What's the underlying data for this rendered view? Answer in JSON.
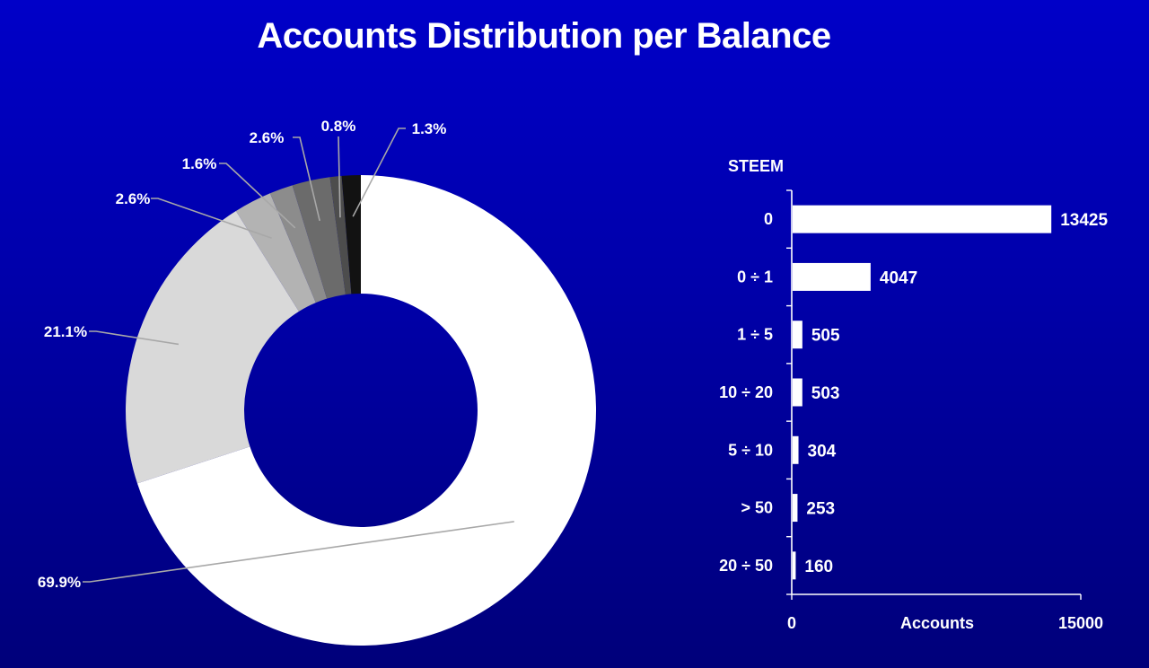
{
  "title": "Accounts Distribution per Balance",
  "colors": {
    "background_top": "#0000c8",
    "background_bottom": "#00007a",
    "text": "#ffffff",
    "leader_line": "#a8a8a8"
  },
  "chart_data": [
    {
      "type": "pie",
      "variant": "donut",
      "start_angle_deg": 0,
      "direction": "clockwise",
      "slices": [
        {
          "label": "69.9%",
          "value": 69.9,
          "color": "#ffffff"
        },
        {
          "label": "21.1%",
          "value": 21.1,
          "color": "#d9d9d9"
        },
        {
          "label": "2.6%",
          "value": 2.6,
          "color": "#b3b3b3"
        },
        {
          "label": "1.6%",
          "value": 1.6,
          "color": "#8c8c8c"
        },
        {
          "label": "2.6%",
          "value": 2.6,
          "color": "#6b6b6b"
        },
        {
          "label": "0.8%",
          "value": 0.8,
          "color": "#4d4d4d"
        },
        {
          "label": "1.3%",
          "value": 1.3,
          "color": "#121212"
        }
      ]
    },
    {
      "type": "bar",
      "orientation": "horizontal",
      "y_axis_title": "STEEM",
      "x_axis_title": "Accounts",
      "xlim": [
        0,
        15000
      ],
      "x_ticks": [
        "0",
        "15000"
      ],
      "categories": [
        "0",
        "0 ÷  1",
        "1 ÷  5",
        "10 ÷  20",
        "5 ÷ 10",
        "> 50",
        "20 ÷ 50"
      ],
      "values": [
        13425,
        4047,
        505,
        503,
        304,
        253,
        160
      ],
      "data_labels": [
        "13425",
        "4047",
        "505",
        "503",
        "304",
        "253",
        "160"
      ],
      "bar_color": "#ffffff"
    }
  ]
}
